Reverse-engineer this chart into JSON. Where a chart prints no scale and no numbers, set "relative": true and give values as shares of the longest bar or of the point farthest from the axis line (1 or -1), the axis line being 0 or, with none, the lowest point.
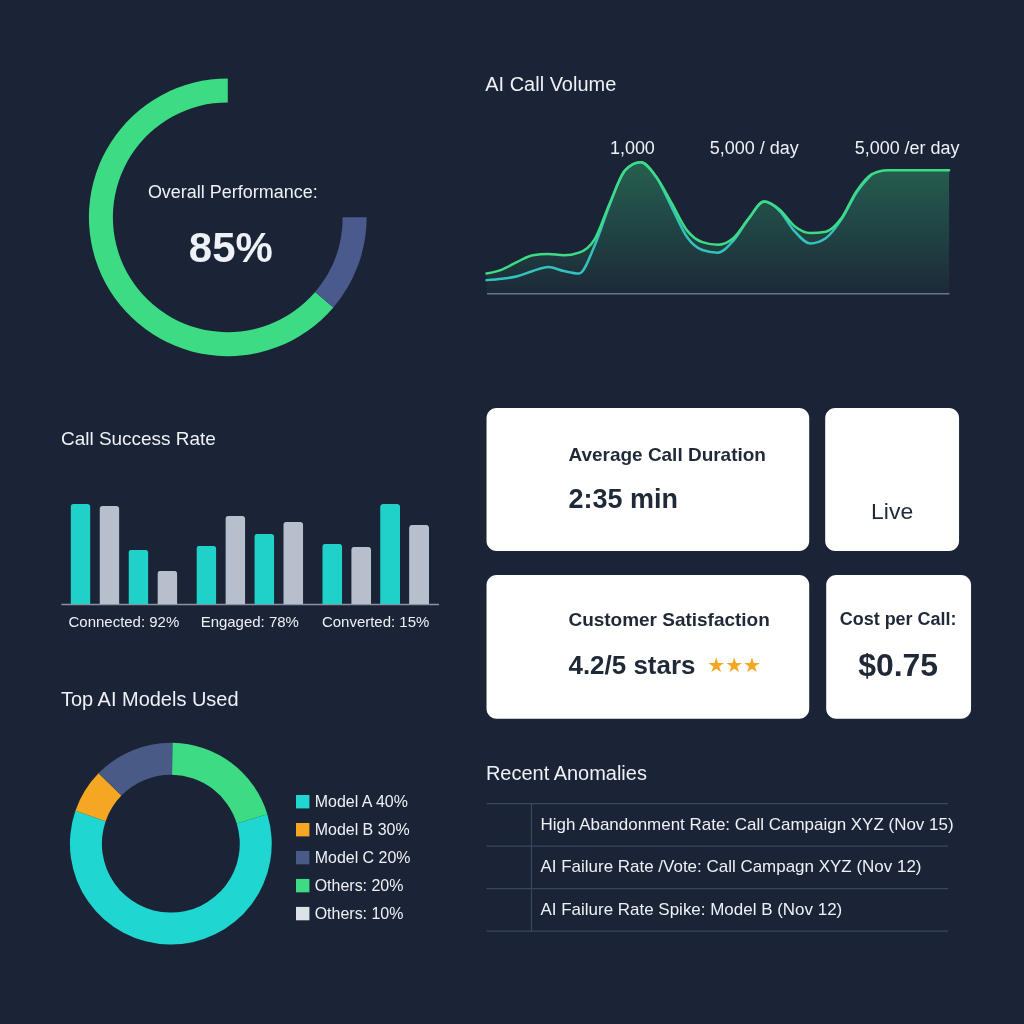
{
  "chart_data": [
    {
      "type": "donut",
      "title": "Overall Performance:",
      "categories": [
        null,
        null
      ],
      "values": [
        85,
        15
      ],
      "colors": [
        "#3ddc84",
        "#4a5a8c"
      ],
      "value_labels": [
        "85%",
        null
      ]
    },
    {
      "type": "line",
      "title": "AI Call Volume",
      "relative": true,
      "categories": [
        null,
        null,
        null,
        null,
        null,
        null,
        null,
        null,
        null,
        null,
        null,
        null,
        null,
        null,
        null,
        null,
        null,
        null,
        null,
        null,
        null,
        null,
        null,
        null,
        null,
        null,
        null,
        null,
        null,
        null,
        null
      ],
      "series": [
        {
          "type": "area",
          "color": "#3ddc84",
          "values": [
            0.15,
            0.18,
            0.24,
            0.29,
            0.3,
            0.29,
            0.31,
            0.41,
            0.69,
            0.94,
            1.0,
            0.89,
            0.69,
            0.48,
            0.39,
            0.37,
            0.42,
            0.57,
            0.7,
            0.64,
            0.51,
            0.46,
            0.47,
            0.57,
            0.78,
            0.91,
            0.94,
            0.94,
            0.94,
            0.94,
            0.94
          ]
        },
        {
          "color": "#33c2bd",
          "values": [
            0.1,
            0.11,
            0.13,
            0.17,
            0.2,
            0.17,
            0.15,
            0.36,
            0.68,
            0.94,
            1.0,
            0.89,
            0.66,
            0.43,
            0.33,
            0.31,
            0.4,
            0.57,
            0.7,
            0.63,
            0.47,
            0.38,
            0.42,
            0.56,
            0.77,
            0.91,
            null,
            null,
            null,
            null,
            null
          ]
        }
      ],
      "annotations": [
        "1,000",
        "5,000 / day",
        "5,000 /er day"
      ]
    },
    {
      "type": "other",
      "title": "Average Call Duration",
      "annotations": [
        "2:35 min"
      ]
    },
    {
      "type": "other",
      "annotations": [
        "Live"
      ]
    },
    {
      "type": "bar",
      "title": "Call Success Rate",
      "relative": true,
      "categories": [
        "Connected: 92%",
        "Engaged: 78%",
        "Converted: 15%"
      ],
      "series": [
        {
          "color": "#1fd1c8",
          "values": [
            1.0,
            0.58,
            0.6
          ]
        },
        {
          "color": "#b8bfcc",
          "values": [
            0.98,
            0.88,
            0.57
          ]
        },
        {
          "color": "#1fd1c8",
          "values": [
            0.54,
            0.7,
            1.0
          ]
        },
        {
          "color": "#b8bfcc",
          "values": [
            0.33,
            0.82,
            0.79
          ]
        }
      ]
    },
    {
      "type": "other",
      "title": "Customer Satisfaction",
      "annotations": [
        "4.2/5 stars",
        "★★★"
      ]
    },
    {
      "type": "other",
      "title": "Cost per Call:",
      "annotations": [
        "$0.75"
      ]
    },
    {
      "type": "donut",
      "title": "Top AI Models Used",
      "categories": [
        "Model A 40%",
        "Model B 30%",
        "Model C 20%",
        "Others: 20%",
        "Others: 10%"
      ],
      "values": [
        60,
        7,
        13,
        20,
        null
      ],
      "colors": [
        "#20d6d0",
        "#f5a623",
        "#4a5a86",
        "#3ddc84",
        "#dde1e8"
      ],
      "legend": "right"
    },
    {
      "type": "other",
      "title": "Recent Anomalies",
      "annotations": [
        "High Abandonment Rate: Call Campaign XYZ (Nov 15)",
        "AI Failure Rate /Vote: Call Campagn XYZ (Nov 12)",
        "AI Failure Rate Spike: Model B (Nov 12)"
      ]
    }
  ]
}
